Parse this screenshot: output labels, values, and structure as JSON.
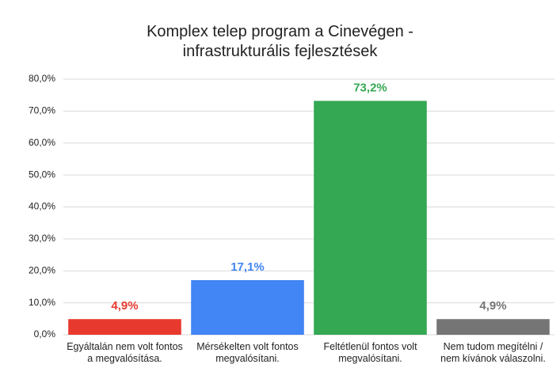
{
  "chart_data": {
    "type": "bar",
    "title": "Komplex telep program a Cinevégen - infrastrukturális fejlesztések",
    "categories": [
      "Egyáltalán nem volt fontos a megvalósítása.",
      "Mérsékelten volt fontos megvalósítani.",
      "Feltétlenül fontos volt megvalósítani.",
      "Nem tudom megítélni / nem kívánok válaszolni."
    ],
    "values": [
      4.9,
      17.1,
      73.2,
      4.9
    ],
    "value_labels": [
      "4,9%",
      "17,1%",
      "73,2%",
      "4,9%"
    ],
    "colors": [
      "#e8392f",
      "#4285f4",
      "#34a853",
      "#757575"
    ],
    "ylim": [
      0,
      80
    ],
    "yticks": [
      {
        "value": 0,
        "label": "0,0%"
      },
      {
        "value": 10,
        "label": "10,0%"
      },
      {
        "value": 20,
        "label": "20,0%"
      },
      {
        "value": 30,
        "label": "30,0%"
      },
      {
        "value": 40,
        "label": "40,0%"
      },
      {
        "value": 50,
        "label": "50,0%"
      },
      {
        "value": 60,
        "label": "60,0%"
      },
      {
        "value": 70,
        "label": "70,0%"
      },
      {
        "value": 80,
        "label": "80,0%"
      }
    ],
    "grid": true
  }
}
